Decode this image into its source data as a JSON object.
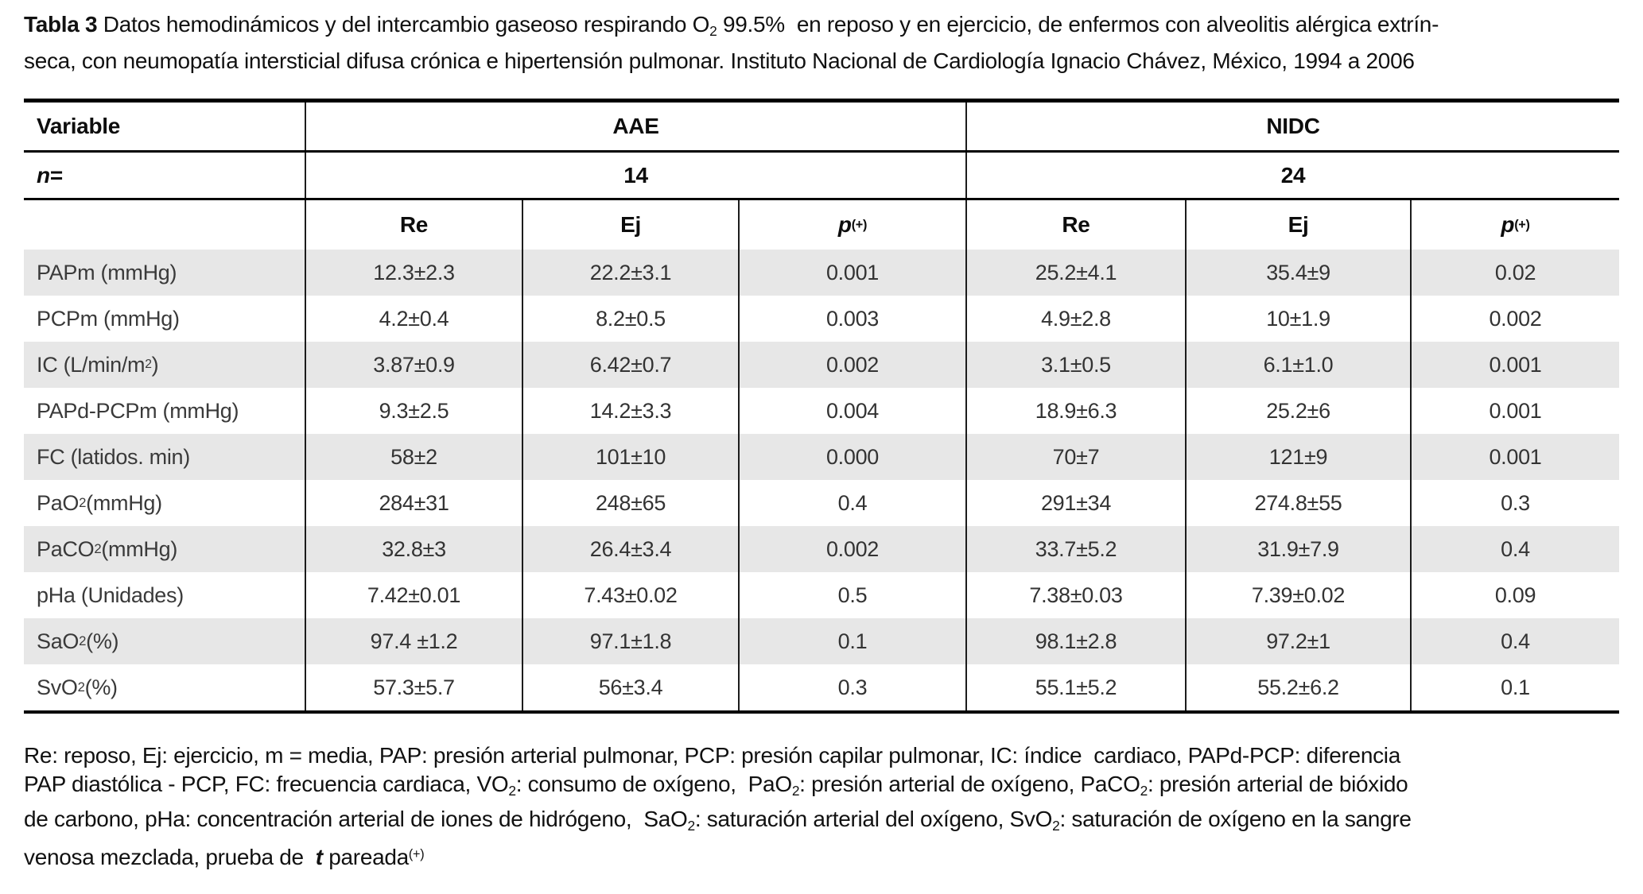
{
  "title": {
    "line1": [
      {
        "text": "Tabla 3",
        "bold": true
      },
      {
        "text": " Datos hemodinámicos y del intercambio gaseoso respirando O"
      },
      {
        "text": "2",
        "sub": true
      },
      {
        "text": " 99.5%  en reposo y en ejercicio, de enfermos con alveolitis alérgica extrín-"
      }
    ],
    "line2": [
      {
        "text": "seca, con neumopatía intersticial difusa crónica e hipertensión pulmonar. Instituto Nacional de Cardiología Ignacio Chávez, México, 1994 a 2006"
      }
    ]
  },
  "table": {
    "stripe_color": "#e7e7e7",
    "header": {
      "variable_label": "Variable",
      "group1": "AAE",
      "group2": "NIDC",
      "n_label": [
        {
          "text": "n",
          "italic": true
        },
        {
          "text": " ="
        }
      ],
      "n1": "14",
      "n2": "24",
      "sub_headers": [
        [
          {
            "text": "Re"
          }
        ],
        [
          {
            "text": "Ej"
          }
        ],
        [
          {
            "text": "p",
            "italic": true
          },
          {
            "text": " (+)",
            "sup": true
          }
        ],
        [
          {
            "text": "Re"
          }
        ],
        [
          {
            "text": "Ej"
          }
        ],
        [
          {
            "text": "p",
            "italic": true
          },
          {
            "text": " (+)",
            "sup": true
          }
        ]
      ]
    },
    "rows": [
      {
        "label": [
          {
            "text": "PAPm (mmHg)"
          }
        ],
        "values": [
          "12.3±2.3",
          "22.2±3.1",
          "0.001",
          "25.2±4.1",
          "35.4±9",
          "0.02"
        ]
      },
      {
        "label": [
          {
            "text": "PCPm (mmHg)"
          }
        ],
        "values": [
          "4.2±0.4",
          "8.2±0.5",
          "0.003",
          "4.9±2.8",
          "10±1.9",
          "0.002"
        ]
      },
      {
        "label": [
          {
            "text": "IC (L/min/m"
          },
          {
            "text": "2",
            "sup": true
          },
          {
            "text": ")"
          }
        ],
        "values": [
          "3.87±0.9",
          "6.42±0.7",
          "0.002",
          "3.1±0.5",
          "6.1±1.0",
          "0.001"
        ]
      },
      {
        "label": [
          {
            "text": "PAPd-PCPm (mmHg)"
          }
        ],
        "values": [
          "9.3±2.5",
          "14.2±3.3",
          "0.004",
          "18.9±6.3",
          "25.2±6",
          "0.001"
        ]
      },
      {
        "label": [
          {
            "text": "FC (latidos. min)"
          }
        ],
        "values": [
          "58±2",
          "101±10",
          "0.000",
          "70±7",
          "121±9",
          "0.001"
        ]
      },
      {
        "label": [
          {
            "text": "PaO"
          },
          {
            "text": "2",
            "sub": true
          },
          {
            "text": " (mmHg)"
          }
        ],
        "values": [
          "284±31",
          "248±65",
          "0.4",
          "291±34",
          "274.8±55",
          "0.3"
        ]
      },
      {
        "label": [
          {
            "text": "PaCO"
          },
          {
            "text": "2",
            "sub": true
          },
          {
            "text": " (mmHg)"
          }
        ],
        "values": [
          "32.8±3",
          "26.4±3.4",
          "0.002",
          "33.7±5.2",
          "31.9±7.9",
          "0.4"
        ]
      },
      {
        "label": [
          {
            "text": "pHa (Unidades)"
          }
        ],
        "values": [
          "7.42±0.01",
          "7.43±0.02",
          "0.5",
          "7.38±0.03",
          "7.39±0.02",
          "0.09"
        ]
      },
      {
        "label": [
          {
            "text": "SaO"
          },
          {
            "text": "2",
            "sub": true
          },
          {
            "text": " (%)"
          }
        ],
        "values": [
          "97.4 ±1.2",
          "97.1±1.8",
          "0.1",
          "98.1±2.8",
          "97.2±1",
          "0.4"
        ]
      },
      {
        "label": [
          {
            "text": "SvO"
          },
          {
            "text": "2",
            "sub": true
          },
          {
            "text": " (%)"
          }
        ],
        "values": [
          "57.3±5.7",
          "56±3.4",
          "0.3",
          "55.1±5.2",
          "55.2±6.2",
          "0.1"
        ]
      }
    ]
  },
  "footnote": {
    "lines": [
      [
        {
          "text": "Re: reposo, Ej: ejercicio, m = media, PAP: presión arterial pulmonar, PCP: presión capilar pulmonar, IC: índice  cardiaco, PAPd-PCP: diferencia"
        }
      ],
      [
        {
          "text": "PAP diastólica - PCP, FC: frecuencia cardiaca, VO"
        },
        {
          "text": "2",
          "sub": true
        },
        {
          "text": ": consumo de oxígeno,  PaO"
        },
        {
          "text": "2",
          "sub": true
        },
        {
          "text": ": presión arterial de oxígeno, PaCO"
        },
        {
          "text": "2",
          "sub": true
        },
        {
          "text": ": presión arterial de bióxido"
        }
      ],
      [
        {
          "text": "de carbono, pHa: concentración arterial de iones de hidrógeno,  SaO"
        },
        {
          "text": "2",
          "sub": true
        },
        {
          "text": ": saturación arterial del oxígeno, SvO"
        },
        {
          "text": "2",
          "sub": true
        },
        {
          "text": ": saturación de oxígeno en la sangre"
        }
      ],
      [
        {
          "text": "venosa mezclada, prueba de  "
        },
        {
          "text": "t",
          "italic": true,
          "bold": true
        },
        {
          "text": " pareada"
        },
        {
          "text": "(+)",
          "sup": true
        }
      ]
    ]
  }
}
